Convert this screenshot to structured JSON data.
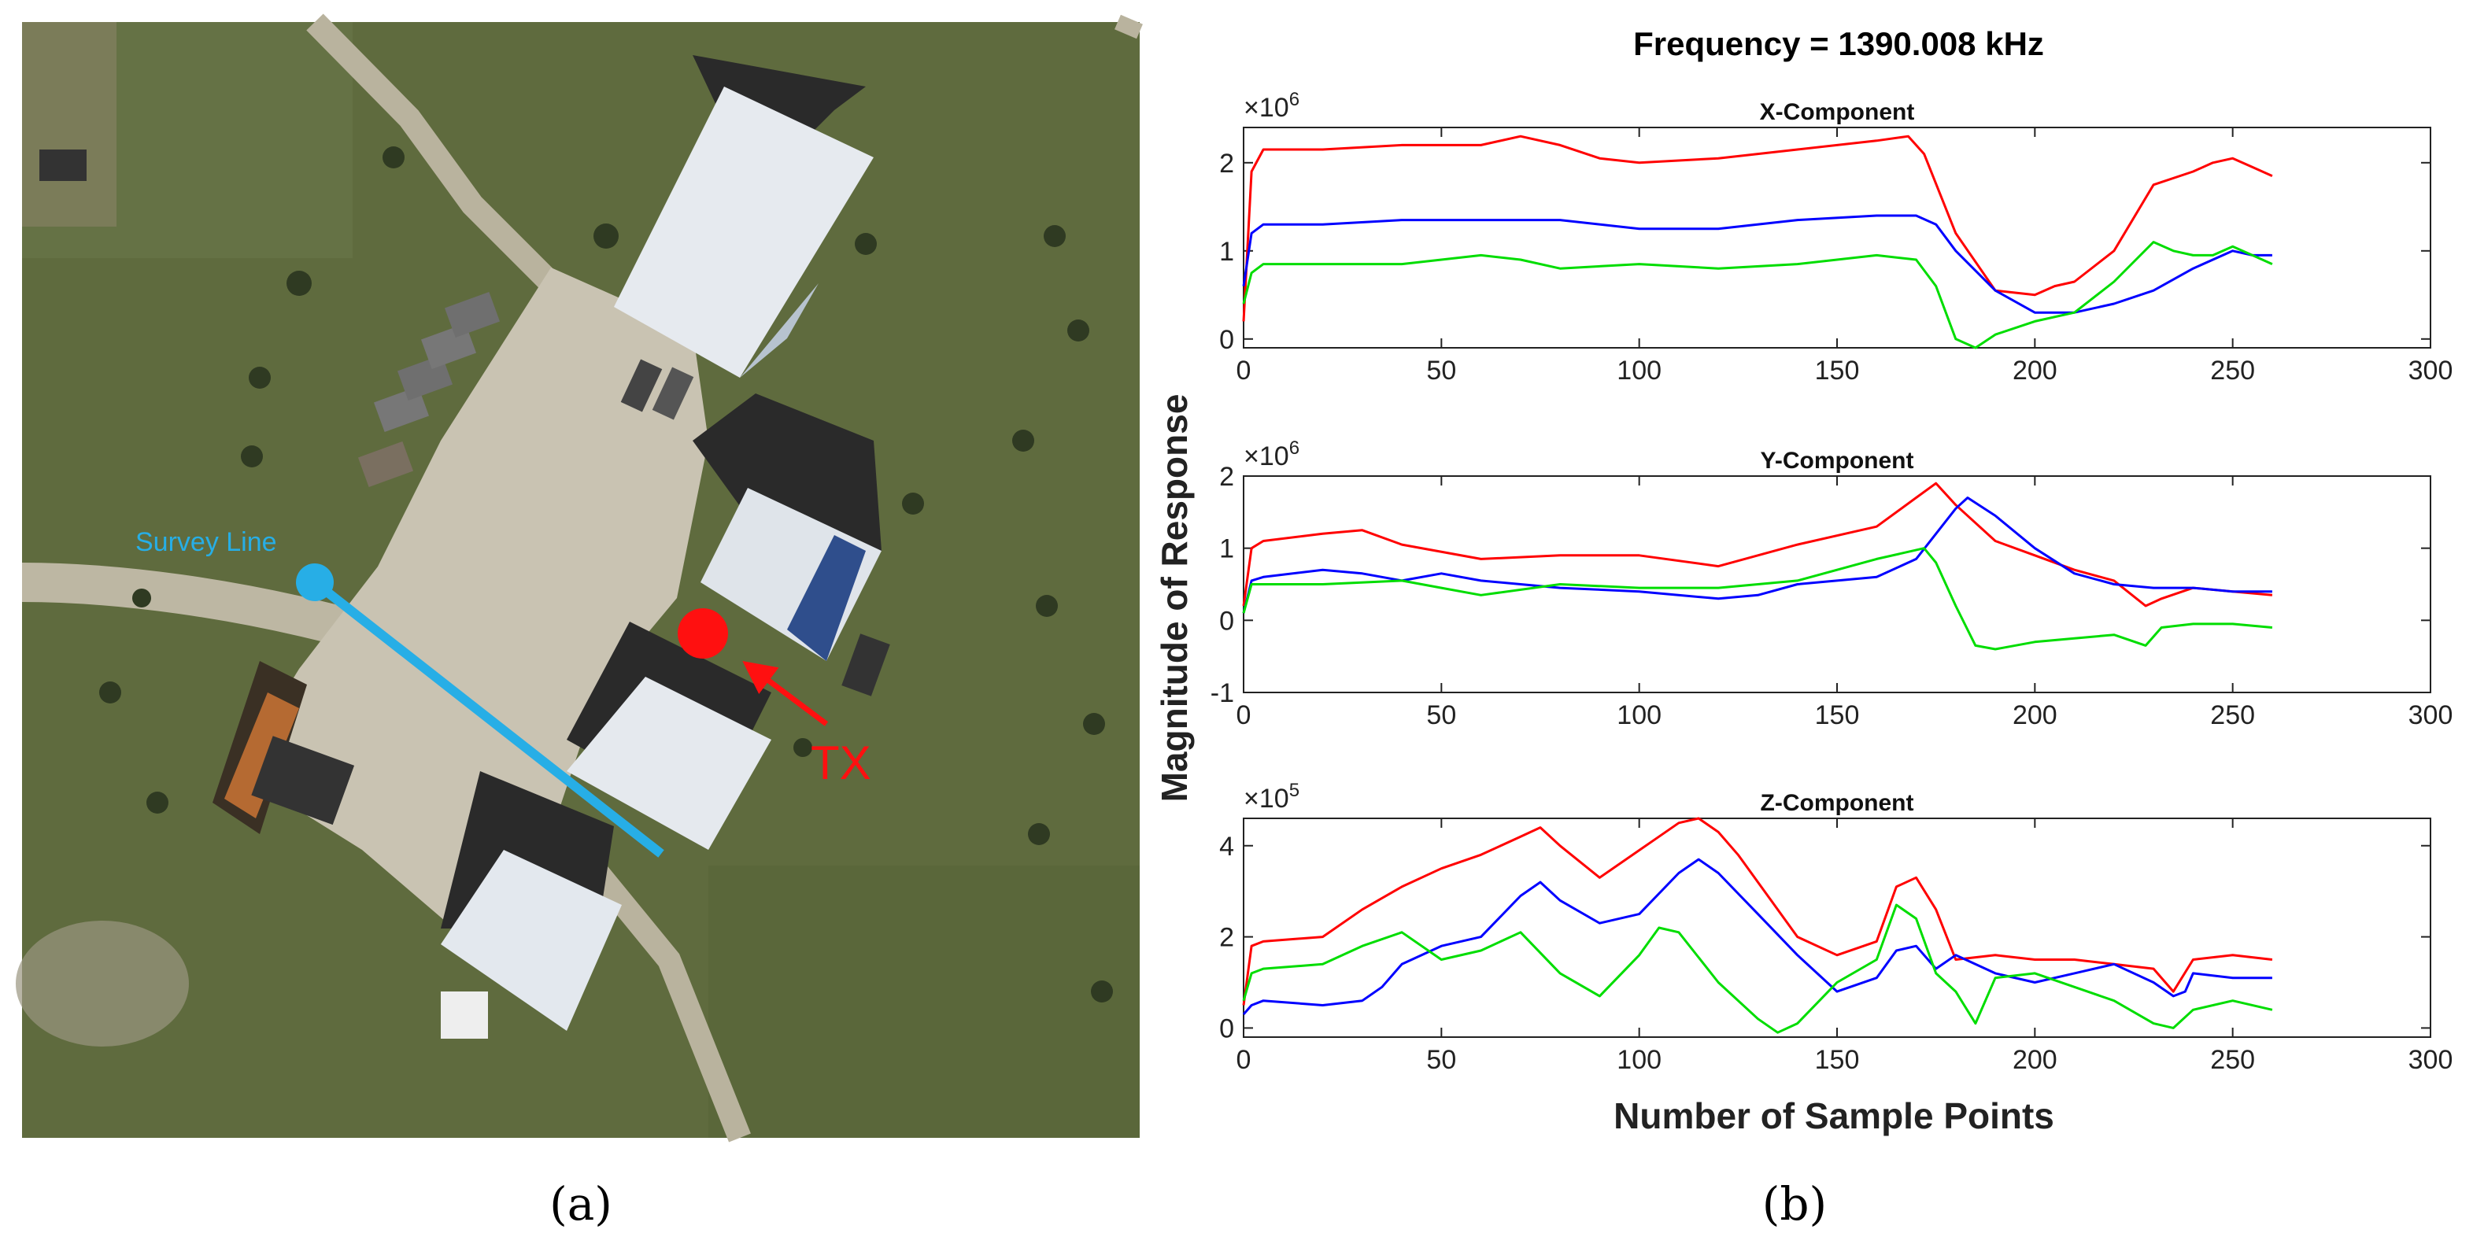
{
  "captions": {
    "a": "(a)",
    "b": "(b)"
  },
  "map": {
    "survey_label": "Survey Line",
    "tx_label": "TX",
    "colors": {
      "grass": "#5f6b3e",
      "pavement": "#c9c3b2",
      "survey": "#27aee6",
      "tx": "#ff1010",
      "roof": "#dfe4ea",
      "shadow": "#2a2a2a"
    }
  },
  "chart_data": {
    "title": "Frequency = 1390.008 kHz",
    "xlabel": "Number of Sample Points",
    "ylabel": "Magnitude of Response",
    "xlim": [
      0,
      300
    ],
    "xticks": [
      "0",
      "50",
      "100",
      "150",
      "200",
      "250",
      "300"
    ],
    "series_colors": {
      "red": "#ff0000",
      "blue": "#0000ff",
      "green": "#00dd00"
    },
    "panels": [
      {
        "name": "X-Component",
        "exponent_base": "×10",
        "exponent_power": "6",
        "ylim": [
          -0.1,
          2.4
        ],
        "yticks": [
          "0",
          "1",
          "2"
        ],
        "ytick_values": [
          0,
          1,
          2
        ],
        "series": [
          {
            "name": "red",
            "x": [
              0,
              2,
              5,
              20,
              40,
              60,
              70,
              80,
              90,
              100,
              120,
              140,
              160,
              168,
              172,
              180,
              190,
              200,
              205,
              210,
              220,
              230,
              240,
              245,
              250,
              255,
              260
            ],
            "y": [
              0.2,
              1.9,
              2.15,
              2.15,
              2.2,
              2.2,
              2.3,
              2.2,
              2.05,
              2.0,
              2.05,
              2.15,
              2.25,
              2.3,
              2.1,
              1.2,
              0.55,
              0.5,
              0.6,
              0.65,
              1.0,
              1.75,
              1.9,
              2.0,
              2.05,
              1.95,
              1.85
            ]
          },
          {
            "name": "blue",
            "x": [
              0,
              2,
              5,
              20,
              40,
              60,
              80,
              100,
              120,
              140,
              160,
              170,
              175,
              180,
              190,
              200,
              210,
              220,
              230,
              240,
              250,
              255,
              260
            ],
            "y": [
              0.6,
              1.2,
              1.3,
              1.3,
              1.35,
              1.35,
              1.35,
              1.25,
              1.25,
              1.35,
              1.4,
              1.4,
              1.3,
              1.0,
              0.55,
              0.3,
              0.3,
              0.4,
              0.55,
              0.8,
              1.0,
              0.95,
              0.95
            ]
          },
          {
            "name": "green",
            "x": [
              0,
              2,
              5,
              20,
              40,
              60,
              70,
              80,
              100,
              120,
              140,
              160,
              170,
              175,
              180,
              185,
              190,
              200,
              210,
              220,
              230,
              235,
              240,
              245,
              250,
              255,
              260
            ],
            "y": [
              0.4,
              0.75,
              0.85,
              0.85,
              0.85,
              0.95,
              0.9,
              0.8,
              0.85,
              0.8,
              0.85,
              0.95,
              0.9,
              0.6,
              0.0,
              -0.1,
              0.05,
              0.2,
              0.3,
              0.65,
              1.1,
              1.0,
              0.95,
              0.95,
              1.05,
              0.95,
              0.85
            ]
          }
        ]
      },
      {
        "name": "Y-Component",
        "exponent_base": "×10",
        "exponent_power": "6",
        "ylim": [
          -1,
          2
        ],
        "yticks": [
          "-1",
          "0",
          "1",
          "2"
        ],
        "ytick_values": [
          -1,
          0,
          1,
          2
        ],
        "series": [
          {
            "name": "red",
            "x": [
              0,
              2,
              5,
              20,
              30,
              40,
              60,
              80,
              100,
              120,
              140,
              160,
              170,
              175,
              180,
              190,
              200,
              210,
              220,
              228,
              232,
              240,
              250,
              260
            ],
            "y": [
              0.2,
              1.0,
              1.1,
              1.2,
              1.25,
              1.05,
              0.85,
              0.9,
              0.9,
              0.75,
              1.05,
              1.3,
              1.7,
              1.9,
              1.6,
              1.1,
              0.9,
              0.7,
              0.55,
              0.2,
              0.3,
              0.45,
              0.4,
              0.35
            ]
          },
          {
            "name": "blue",
            "x": [
              0,
              2,
              5,
              20,
              30,
              40,
              50,
              60,
              80,
              100,
              120,
              130,
              140,
              160,
              170,
              180,
              183,
              190,
              200,
              210,
              220,
              230,
              240,
              250,
              260
            ],
            "y": [
              0.1,
              0.55,
              0.6,
              0.7,
              0.65,
              0.55,
              0.65,
              0.55,
              0.45,
              0.4,
              0.3,
              0.35,
              0.5,
              0.6,
              0.85,
              1.55,
              1.7,
              1.45,
              1.0,
              0.65,
              0.5,
              0.45,
              0.45,
              0.4,
              0.4
            ]
          },
          {
            "name": "green",
            "x": [
              0,
              2,
              5,
              20,
              40,
              50,
              60,
              80,
              100,
              120,
              140,
              160,
              172,
              175,
              180,
              185,
              190,
              200,
              210,
              220,
              228,
              232,
              240,
              250,
              260
            ],
            "y": [
              0.1,
              0.5,
              0.5,
              0.5,
              0.55,
              0.45,
              0.35,
              0.5,
              0.45,
              0.45,
              0.55,
              0.85,
              1.0,
              0.8,
              0.2,
              -0.35,
              -0.4,
              -0.3,
              -0.25,
              -0.2,
              -0.35,
              -0.1,
              -0.05,
              -0.05,
              -0.1
            ]
          }
        ]
      },
      {
        "name": "Z-Component",
        "exponent_base": "×10",
        "exponent_power": "5",
        "ylim": [
          -0.2,
          4.6
        ],
        "yticks": [
          "0",
          "2",
          "4"
        ],
        "ytick_values": [
          0,
          2,
          4
        ],
        "series": [
          {
            "name": "red",
            "x": [
              0,
              2,
              5,
              20,
              30,
              40,
              50,
              60,
              70,
              75,
              80,
              90,
              100,
              105,
              110,
              115,
              120,
              125,
              130,
              140,
              150,
              160,
              165,
              170,
              175,
              180,
              190,
              200,
              210,
              220,
              230,
              235,
              240,
              250,
              260
            ],
            "y": [
              0.5,
              1.8,
              1.9,
              2.0,
              2.6,
              3.1,
              3.5,
              3.8,
              4.2,
              4.4,
              4.0,
              3.3,
              3.9,
              4.2,
              4.5,
              4.6,
              4.3,
              3.8,
              3.2,
              2.0,
              1.6,
              1.9,
              3.1,
              3.3,
              2.6,
              1.5,
              1.6,
              1.5,
              1.5,
              1.4,
              1.3,
              0.8,
              1.5,
              1.6,
              1.5
            ]
          },
          {
            "name": "blue",
            "x": [
              0,
              2,
              5,
              20,
              30,
              35,
              40,
              50,
              60,
              70,
              75,
              80,
              90,
              100,
              110,
              115,
              120,
              130,
              140,
              150,
              160,
              165,
              170,
              175,
              180,
              190,
              200,
              210,
              220,
              230,
              235,
              238,
              240,
              250,
              260
            ],
            "y": [
              0.3,
              0.5,
              0.6,
              0.5,
              0.6,
              0.9,
              1.4,
              1.8,
              2.0,
              2.9,
              3.2,
              2.8,
              2.3,
              2.5,
              3.4,
              3.7,
              3.4,
              2.5,
              1.6,
              0.8,
              1.1,
              1.7,
              1.8,
              1.3,
              1.6,
              1.2,
              1.0,
              1.2,
              1.4,
              1.0,
              0.7,
              0.8,
              1.2,
              1.1,
              1.1
            ]
          },
          {
            "name": "green",
            "x": [
              0,
              2,
              5,
              20,
              30,
              40,
              50,
              60,
              70,
              80,
              90,
              100,
              105,
              110,
              120,
              130,
              135,
              140,
              150,
              160,
              165,
              170,
              175,
              180,
              185,
              190,
              200,
              210,
              220,
              230,
              235,
              240,
              250,
              260
            ],
            "y": [
              0.6,
              1.2,
              1.3,
              1.4,
              1.8,
              2.1,
              1.5,
              1.7,
              2.1,
              1.2,
              0.7,
              1.6,
              2.2,
              2.1,
              1.0,
              0.2,
              -0.1,
              0.1,
              1.0,
              1.5,
              2.7,
              2.4,
              1.2,
              0.8,
              0.1,
              1.1,
              1.2,
              0.9,
              0.6,
              0.1,
              0.0,
              0.4,
              0.6,
              0.4
            ]
          }
        ]
      }
    ]
  }
}
